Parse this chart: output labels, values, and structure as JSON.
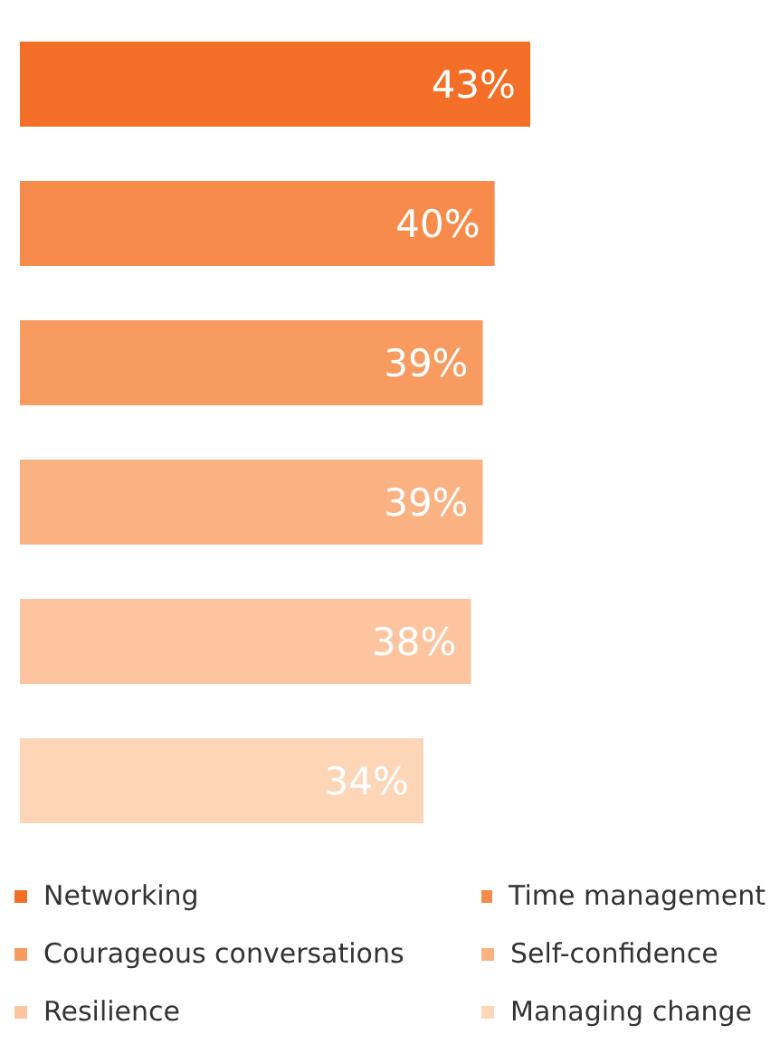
{
  "chart_data": {
    "type": "bar",
    "orientation": "horizontal",
    "stacked": true,
    "categories": [
      null,
      null,
      null,
      null,
      null,
      null
    ],
    "tick_labels": false,
    "legend": "bottom",
    "series": [
      {
        "name": "Networking",
        "color": "#f36f27",
        "values": [
          43,
          null,
          null,
          null,
          null,
          null
        ],
        "value_labels": [
          "43%",
          null,
          null,
          null,
          null,
          null
        ]
      },
      {
        "name": "Time management",
        "color": "#f68b4c",
        "values": [
          null,
          40,
          null,
          null,
          null,
          null
        ],
        "value_labels": [
          null,
          "40%",
          null,
          null,
          null,
          null
        ]
      },
      {
        "name": "Courageous conversations",
        "color": "#f89b61",
        "values": [
          null,
          null,
          39,
          null,
          null,
          null
        ],
        "value_labels": [
          null,
          null,
          "39%",
          null,
          null,
          null
        ]
      },
      {
        "name": "Self-confidence",
        "color": "#fab282",
        "values": [
          null,
          null,
          null,
          39,
          null,
          null
        ],
        "value_labels": [
          null,
          null,
          null,
          "39%",
          null,
          null
        ]
      },
      {
        "name": "Resilience",
        "color": "#fcc59f",
        "values": [
          null,
          null,
          null,
          null,
          38,
          null
        ],
        "value_labels": [
          null,
          null,
          null,
          null,
          "38%",
          null
        ]
      },
      {
        "name": "Managing change",
        "color": "#fdd6b8",
        "values": [
          null,
          null,
          null,
          null,
          null,
          34
        ],
        "value_labels": [
          null,
          null,
          null,
          null,
          null,
          "34%"
        ]
      }
    ]
  }
}
